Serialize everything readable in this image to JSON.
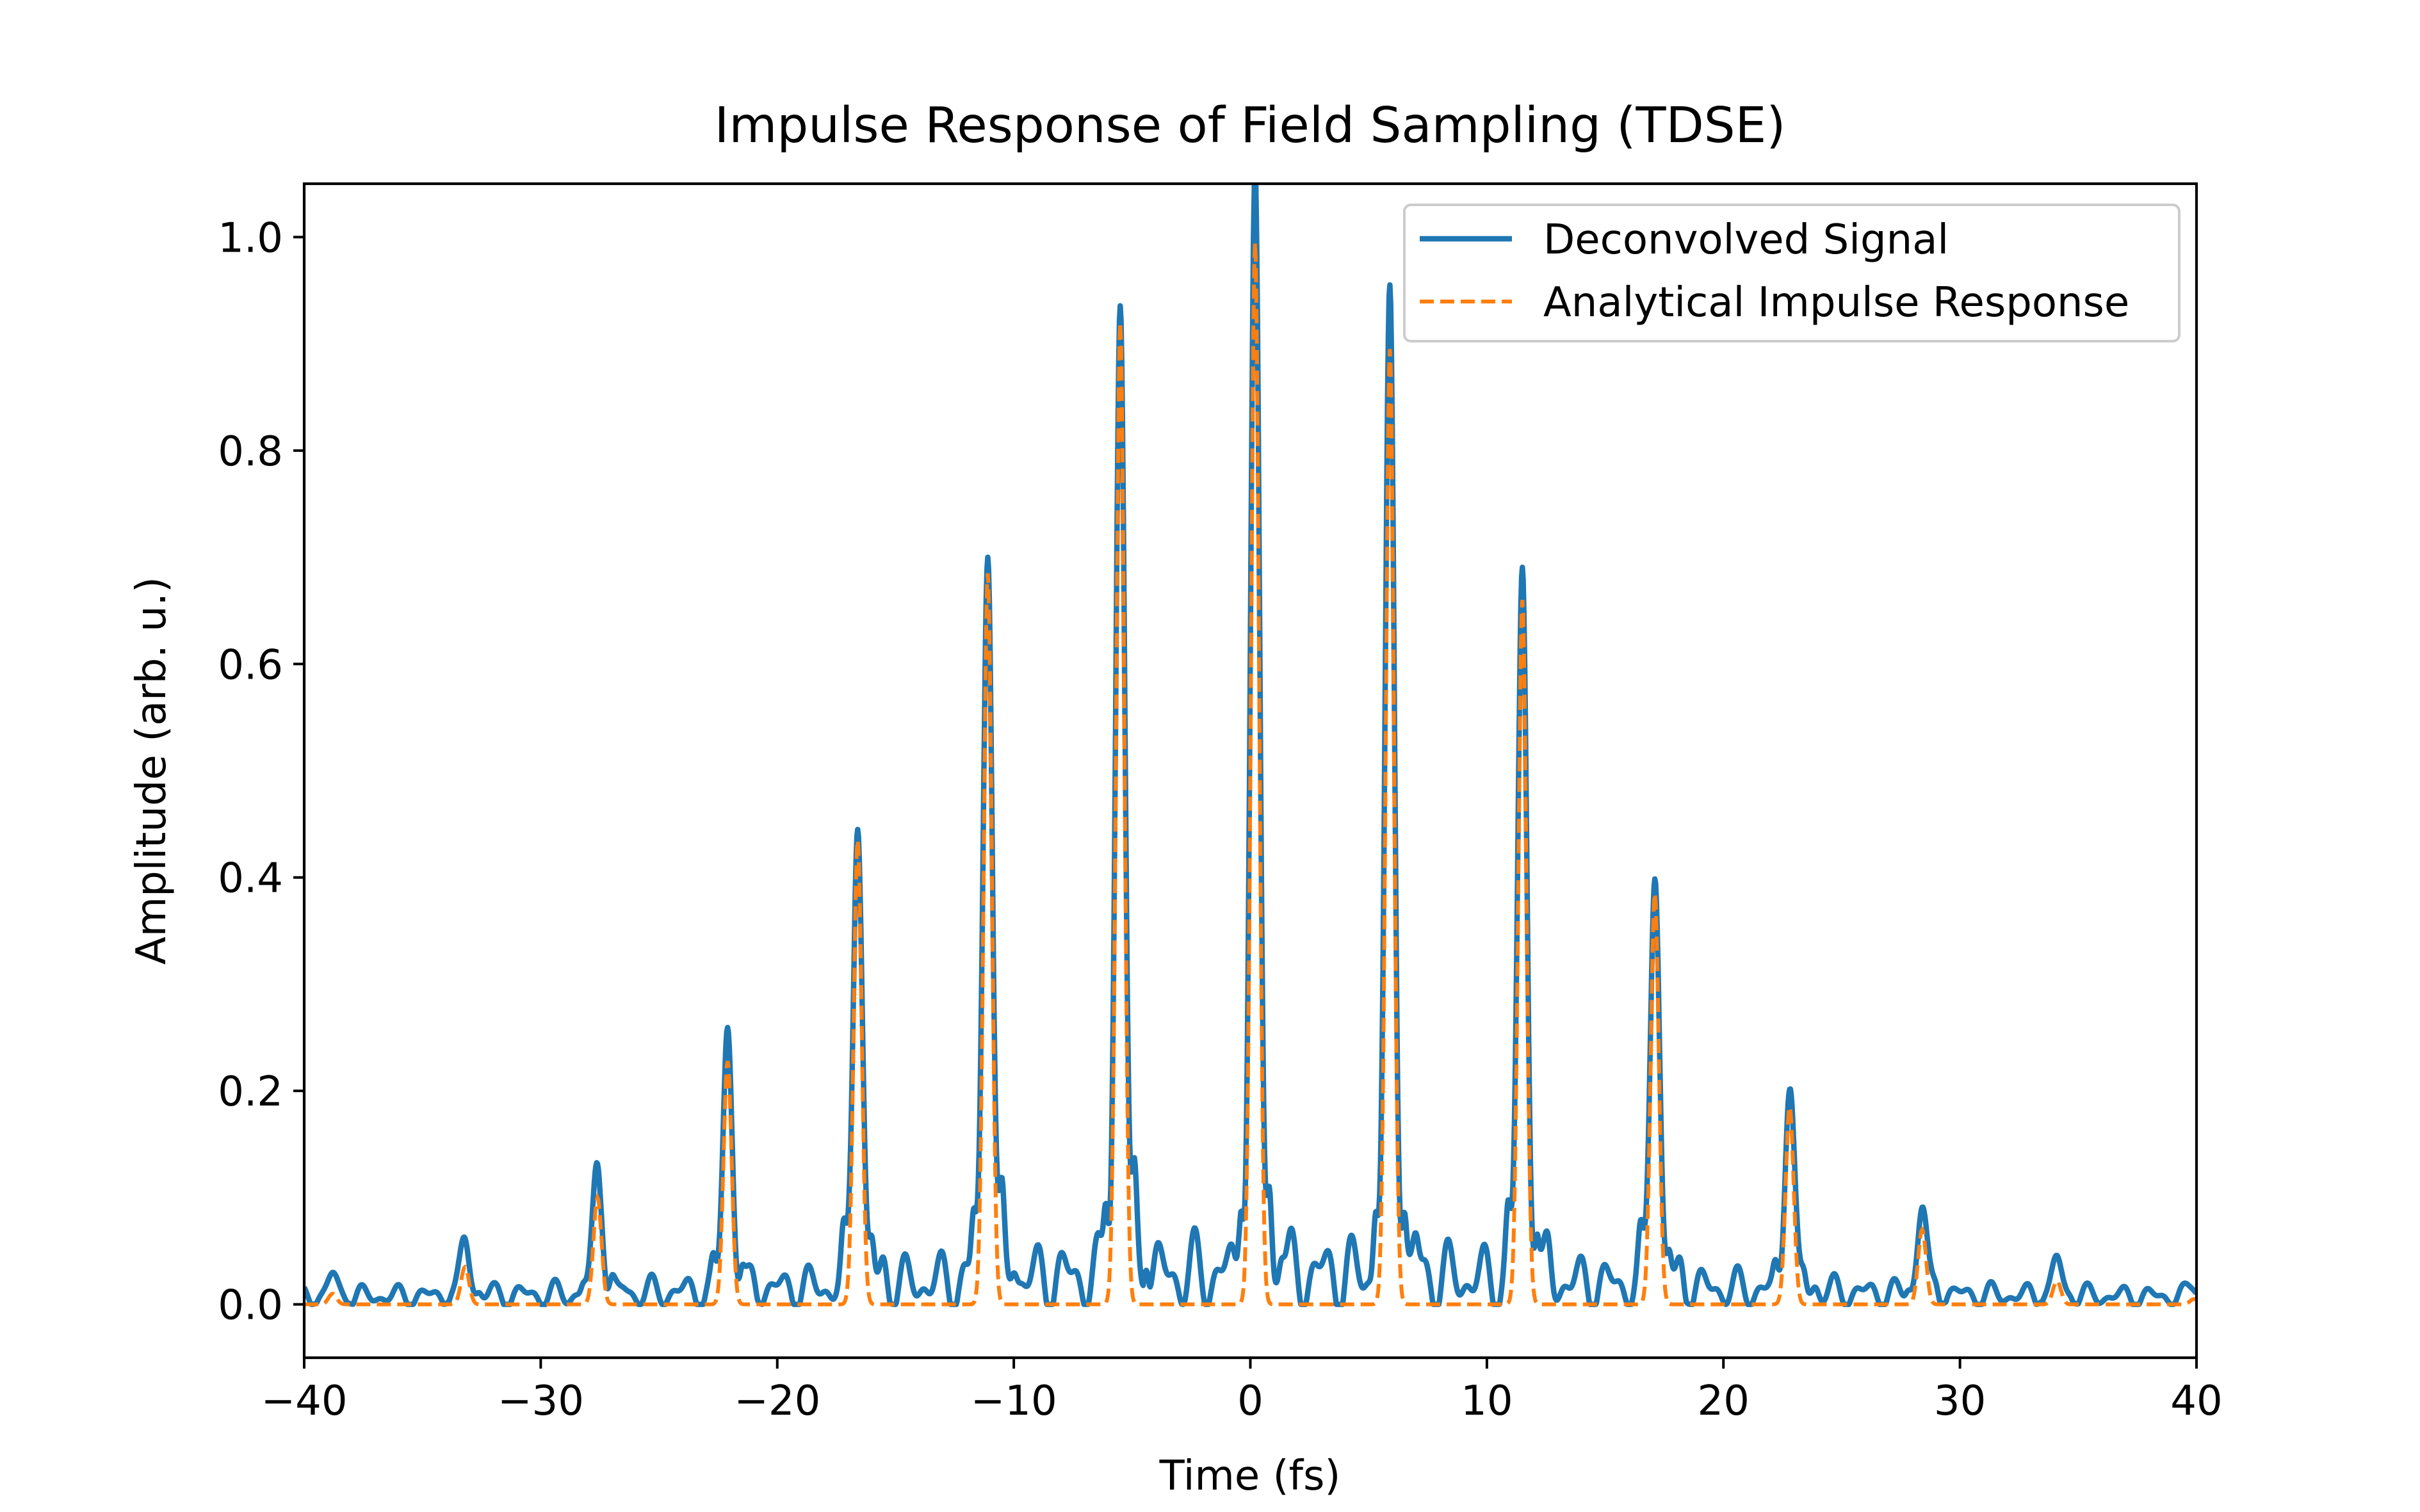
{
  "chart_data": {
    "type": "line",
    "title": "Impulse Response of Field Sampling (TDSE)",
    "xlabel": "Time (fs)",
    "ylabel": "Amplitude (arb. u.)",
    "xlim": [
      -40,
      40
    ],
    "ylim": [
      -0.05,
      1.05
    ],
    "xticks": [
      -40,
      -30,
      -20,
      -10,
      0,
      10,
      20,
      30,
      40
    ],
    "xtick_labels": [
      "−40",
      "−30",
      "−20",
      "−10",
      "0",
      "10",
      "20",
      "30",
      "40"
    ],
    "yticks": [
      0.0,
      0.2,
      0.4,
      0.6,
      0.8,
      1.0
    ],
    "ytick_labels": [
      "0.0",
      "0.2",
      "0.4",
      "0.6",
      "0.8",
      "1.0"
    ],
    "grid": false,
    "legend_position": "top-right",
    "pulse_period_fs": 5.65,
    "series": [
      {
        "name": "Deconvolved Signal",
        "color": "#1f77b4",
        "style": "solid",
        "peaks": [
          {
            "t": -38.8,
            "amp": 0.02
          },
          {
            "t": -33.2,
            "amp": 0.053
          },
          {
            "t": -27.6,
            "amp": 0.123
          },
          {
            "t": -22.1,
            "amp": 0.248
          },
          {
            "t": -16.6,
            "amp": 0.445
          },
          {
            "t": -11.1,
            "amp": 0.7
          },
          {
            "t": -5.5,
            "amp": 0.91
          },
          {
            "t": 0.2,
            "amp": 1.0
          },
          {
            "t": 5.9,
            "amp": 0.895
          },
          {
            "t": 11.5,
            "amp": 0.66
          },
          {
            "t": 17.1,
            "amp": 0.397
          },
          {
            "t": 22.8,
            "amp": 0.2
          },
          {
            "t": 28.4,
            "amp": 0.085
          },
          {
            "t": 34.1,
            "amp": 0.035
          },
          {
            "t": 39.9,
            "amp": 0.012
          }
        ]
      },
      {
        "name": "Analytical Impulse Response",
        "color": "#ff7f0e",
        "style": "dashed",
        "peaks": [
          {
            "t": -38.8,
            "amp": 0.01
          },
          {
            "t": -33.2,
            "amp": 0.035
          },
          {
            "t": -27.6,
            "amp": 0.1
          },
          {
            "t": -22.1,
            "amp": 0.228
          },
          {
            "t": -16.6,
            "amp": 0.435
          },
          {
            "t": -11.1,
            "amp": 0.685
          },
          {
            "t": -5.5,
            "amp": 0.92
          },
          {
            "t": 0.2,
            "amp": 0.995
          },
          {
            "t": 5.9,
            "amp": 0.895
          },
          {
            "t": 11.5,
            "amp": 0.66
          },
          {
            "t": 17.1,
            "amp": 0.385
          },
          {
            "t": 22.8,
            "amp": 0.185
          },
          {
            "t": 28.4,
            "amp": 0.07
          },
          {
            "t": 34.1,
            "amp": 0.022
          },
          {
            "t": 39.9,
            "amp": 0.005
          }
        ]
      }
    ]
  }
}
